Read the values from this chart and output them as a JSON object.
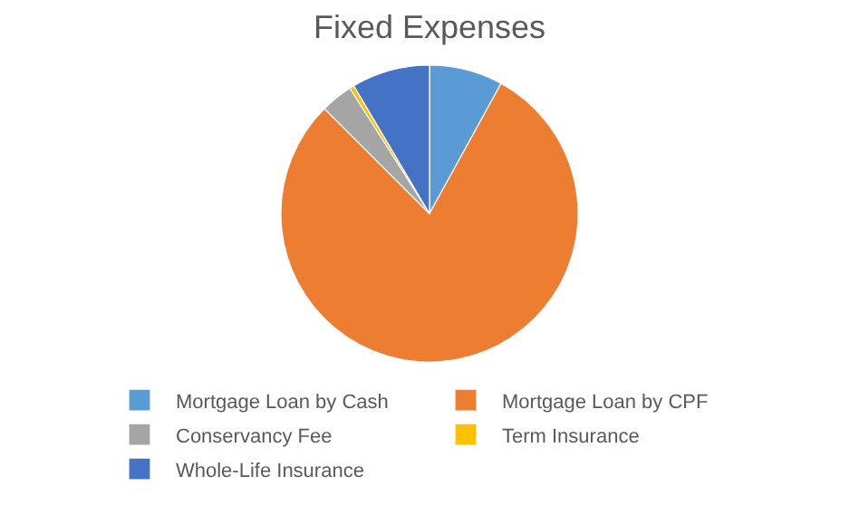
{
  "chart_data": {
    "type": "pie",
    "title": "Fixed Expenses",
    "categories": [
      "Mortgage Loan by Cash",
      "Mortgage Loan by CPF",
      "Conservancy Fee",
      "Term Insurance",
      "Whole-Life Insurance"
    ],
    "values": [
      8,
      79.5,
      3.5,
      0.5,
      8.5
    ],
    "colors": [
      "#5b9bd5",
      "#ed7d31",
      "#a5a5a5",
      "#ffc000",
      "#4472c4"
    ],
    "legend": "bottom"
  }
}
